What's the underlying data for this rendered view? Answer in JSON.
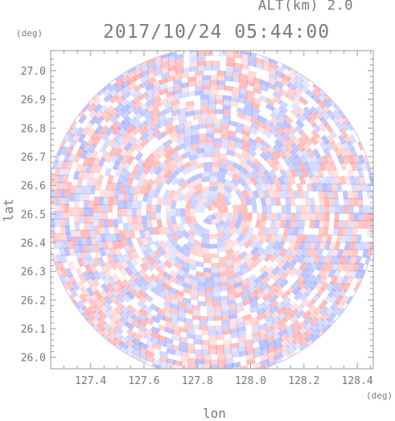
{
  "header": {
    "alt_label": "ALT(km) 2.0",
    "title": "2017/10/24 05:44:00",
    "y_unit": "(deg)",
    "x_unit": "(deg)"
  },
  "chart_data": {
    "type": "heatmap",
    "title": "2017/10/24 05:44:00",
    "xlabel": "lon",
    "ylabel": "lat",
    "xlim": [
      127.25,
      128.46
    ],
    "ylim": [
      25.96,
      27.07
    ],
    "x_ticks": [
      "127.4",
      "127.6",
      "127.8",
      "128.0",
      "128.2",
      "128.4"
    ],
    "y_ticks": [
      "26.0",
      "26.1",
      "26.2",
      "26.3",
      "26.4",
      "26.5",
      "26.6",
      "26.7",
      "26.8",
      "26.9",
      "27.0"
    ],
    "center": {
      "lon": 127.853,
      "lat": 26.505
    },
    "colors": {
      "positive": "#ff9a9a",
      "negative": "#9aa6ff",
      "neutral": "#ffffff",
      "frame": "#999999"
    }
  }
}
